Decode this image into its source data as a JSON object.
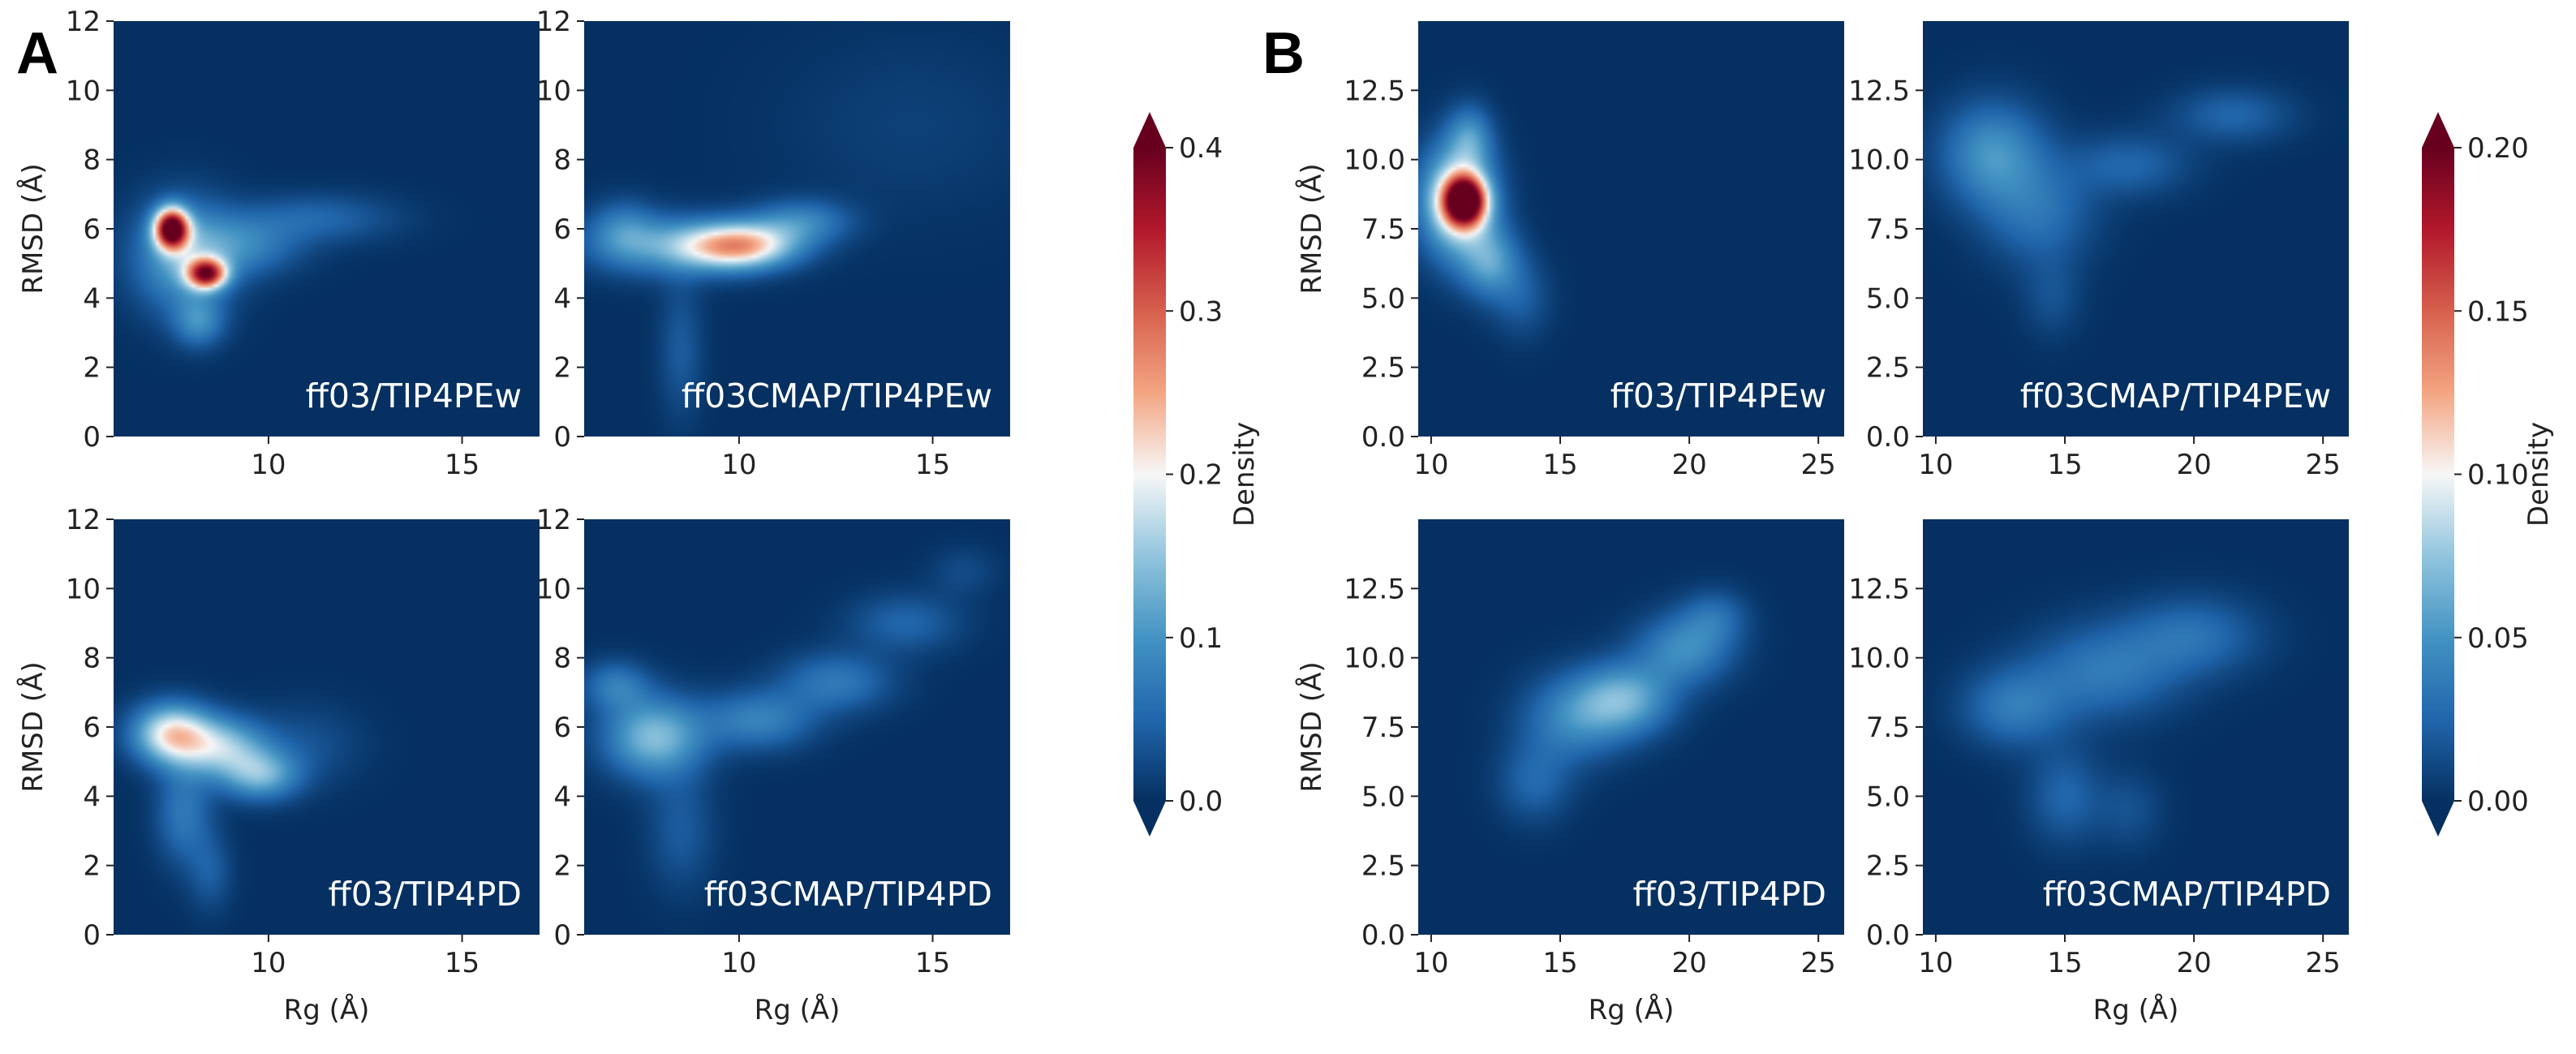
{
  "colors": {
    "background": "#08306b",
    "stops": [
      "#053061",
      "#2166ac",
      "#4393c3",
      "#92c5de",
      "#f7f7f7",
      "#f4a582",
      "#d6604d",
      "#b2182b",
      "#67001f"
    ]
  },
  "chart_data": {
    "groups": [
      {
        "letter": "A",
        "colorbar": {
          "label": "Density",
          "min": 0.0,
          "max": 0.4,
          "ticks": [
            "0.0",
            "0.1",
            "0.2",
            "0.3",
            "0.4"
          ]
        },
        "panels": [
          {
            "label": "ff03/TIP4PEw",
            "type": "heatmap",
            "xlabel": "",
            "ylabel": "RMSD (Å)",
            "xlim": [
              6,
              17
            ],
            "ylim": [
              0,
              12
            ],
            "xticks": [
              "10",
              "15"
            ],
            "yticks": [
              "0",
              "2",
              "4",
              "6",
              "8",
              "10",
              "12"
            ],
            "blobs": [
              {
                "x": 7.5,
                "y": 6.0,
                "sx": 0.3,
                "sy": 0.4,
                "v": 0.4
              },
              {
                "x": 8.4,
                "y": 4.7,
                "sx": 0.35,
                "sy": 0.3,
                "v": 0.32
              },
              {
                "x": 7.8,
                "y": 5.2,
                "sx": 0.9,
                "sy": 1.1,
                "v": 0.12
              },
              {
                "x": 8.2,
                "y": 3.3,
                "sx": 0.45,
                "sy": 0.5,
                "v": 0.08
              },
              {
                "x": 9.4,
                "y": 5.5,
                "sx": 1.0,
                "sy": 0.6,
                "v": 0.07
              },
              {
                "x": 11.3,
                "y": 6.3,
                "sx": 1.4,
                "sy": 0.5,
                "v": 0.05
              }
            ]
          },
          {
            "label": "ff03CMAP/TIP4PEw",
            "type": "heatmap",
            "xlabel": "",
            "ylabel": "",
            "xlim": [
              6,
              17
            ],
            "ylim": [
              0,
              12
            ],
            "xticks": [
              "10",
              "15"
            ],
            "yticks": [
              "0",
              "2",
              "4",
              "6",
              "8",
              "10",
              "12"
            ],
            "blobs": [
              {
                "x": 10.0,
                "y": 5.5,
                "sx": 1.0,
                "sy": 0.45,
                "v": 0.22
              },
              {
                "x": 8.3,
                "y": 5.5,
                "sx": 1.5,
                "sy": 0.6,
                "v": 0.1
              },
              {
                "x": 11.6,
                "y": 6.2,
                "sx": 0.9,
                "sy": 0.45,
                "v": 0.08
              },
              {
                "x": 7.0,
                "y": 6.0,
                "sx": 0.6,
                "sy": 0.6,
                "v": 0.06
              },
              {
                "x": 8.5,
                "y": 2.5,
                "sx": 0.4,
                "sy": 1.4,
                "v": 0.04
              },
              {
                "x": 14.5,
                "y": 9.0,
                "sx": 2.3,
                "sy": 1.8,
                "v": 0.015
              }
            ]
          },
          {
            "label": "ff03/TIP4PD",
            "type": "heatmap",
            "xlabel": "Rg (Å)",
            "ylabel": "RMSD (Å)",
            "xlim": [
              6,
              17
            ],
            "ylim": [
              0,
              12
            ],
            "xticks": [
              "10",
              "15"
            ],
            "yticks": [
              "0",
              "2",
              "4",
              "6",
              "8",
              "10",
              "12"
            ],
            "blobs": [
              {
                "x": 7.5,
                "y": 5.8,
                "sx": 0.7,
                "sy": 0.6,
                "v": 0.2
              },
              {
                "x": 8.8,
                "y": 5.4,
                "sx": 0.8,
                "sy": 0.6,
                "v": 0.14
              },
              {
                "x": 9.8,
                "y": 4.6,
                "sx": 0.7,
                "sy": 0.5,
                "v": 0.12
              },
              {
                "x": 7.8,
                "y": 3.5,
                "sx": 0.5,
                "sy": 1.0,
                "v": 0.07
              },
              {
                "x": 8.5,
                "y": 1.8,
                "sx": 0.4,
                "sy": 0.8,
                "v": 0.04
              },
              {
                "x": 11.0,
                "y": 5.5,
                "sx": 1.0,
                "sy": 0.8,
                "v": 0.03
              }
            ]
          },
          {
            "label": "ff03CMAP/TIP4PD",
            "type": "heatmap",
            "xlabel": "Rg (Å)",
            "ylabel": "",
            "xlim": [
              6,
              17
            ],
            "ylim": [
              0,
              12
            ],
            "xticks": [
              "10",
              "15"
            ],
            "yticks": [
              "0",
              "2",
              "4",
              "6",
              "8",
              "10",
              "12"
            ],
            "blobs": [
              {
                "x": 7.8,
                "y": 5.7,
                "sx": 0.9,
                "sy": 0.8,
                "v": 0.14
              },
              {
                "x": 10.5,
                "y": 6.2,
                "sx": 1.0,
                "sy": 0.6,
                "v": 0.08
              },
              {
                "x": 12.5,
                "y": 7.3,
                "sx": 1.0,
                "sy": 0.6,
                "v": 0.07
              },
              {
                "x": 14.3,
                "y": 9.0,
                "sx": 1.0,
                "sy": 0.6,
                "v": 0.05
              },
              {
                "x": 15.8,
                "y": 10.5,
                "sx": 0.6,
                "sy": 0.5,
                "v": 0.025
              },
              {
                "x": 6.8,
                "y": 7.2,
                "sx": 0.6,
                "sy": 0.5,
                "v": 0.07
              },
              {
                "x": 8.5,
                "y": 3.0,
                "sx": 0.6,
                "sy": 1.2,
                "v": 0.04
              }
            ]
          }
        ]
      },
      {
        "letter": "B",
        "colorbar": {
          "label": "Density",
          "min": 0.0,
          "max": 0.2,
          "ticks": [
            "0.00",
            "0.05",
            "0.10",
            "0.15",
            "0.20"
          ]
        },
        "panels": [
          {
            "label": "ff03/TIP4PEw",
            "type": "heatmap",
            "xlabel": "",
            "ylabel": "RMSD (Å)",
            "xlim": [
              9.5,
              26
            ],
            "ylim": [
              0,
              15
            ],
            "xticks": [
              "10",
              "15",
              "20",
              "25"
            ],
            "yticks": [
              "0.0",
              "2.5",
              "5.0",
              "7.5",
              "10.0",
              "12.5"
            ],
            "blobs": [
              {
                "x": 11.3,
                "y": 8.5,
                "sx": 0.55,
                "sy": 0.6,
                "v": 0.2
              },
              {
                "x": 11.0,
                "y": 8.5,
                "sx": 1.0,
                "sy": 1.4,
                "v": 0.1
              },
              {
                "x": 12.3,
                "y": 6.3,
                "sx": 0.8,
                "sy": 0.9,
                "v": 0.05
              },
              {
                "x": 11.5,
                "y": 10.8,
                "sx": 0.6,
                "sy": 0.8,
                "v": 0.04
              },
              {
                "x": 13.5,
                "y": 5.0,
                "sx": 0.8,
                "sy": 1.0,
                "v": 0.02
              }
            ]
          },
          {
            "label": "ff03CMAP/TIP4PEw",
            "type": "heatmap",
            "xlabel": "",
            "ylabel": "",
            "xlim": [
              9.5,
              26
            ],
            "ylim": [
              0,
              15
            ],
            "xticks": [
              "10",
              "15",
              "20",
              "25"
            ],
            "yticks": [
              "0.0",
              "2.5",
              "5.0",
              "7.5",
              "10.0",
              "12.5"
            ],
            "blobs": [
              {
                "x": 12.2,
                "y": 10.2,
                "sx": 1.4,
                "sy": 1.3,
                "v": 0.05
              },
              {
                "x": 14.0,
                "y": 8.0,
                "sx": 1.5,
                "sy": 1.3,
                "v": 0.03
              },
              {
                "x": 17.5,
                "y": 9.8,
                "sx": 1.6,
                "sy": 0.8,
                "v": 0.025
              },
              {
                "x": 21.5,
                "y": 11.6,
                "sx": 1.6,
                "sy": 0.7,
                "v": 0.025
              },
              {
                "x": 14.5,
                "y": 5.0,
                "sx": 0.8,
                "sy": 1.0,
                "v": 0.015
              }
            ]
          },
          {
            "label": "ff03/TIP4PD",
            "type": "heatmap",
            "xlabel": "Rg (Å)",
            "ylabel": "RMSD (Å)",
            "xlim": [
              9.5,
              26
            ],
            "ylim": [
              0,
              15
            ],
            "xticks": [
              "10",
              "15",
              "20",
              "25"
            ],
            "yticks": [
              "0.0",
              "2.5",
              "5.0",
              "7.5",
              "10.0",
              "12.5"
            ],
            "blobs": [
              {
                "x": 17.5,
                "y": 8.5,
                "sx": 1.3,
                "sy": 0.9,
                "v": 0.06
              },
              {
                "x": 15.5,
                "y": 7.8,
                "sx": 1.4,
                "sy": 1.1,
                "v": 0.04
              },
              {
                "x": 19.8,
                "y": 10.3,
                "sx": 1.3,
                "sy": 0.9,
                "v": 0.045
              },
              {
                "x": 21.0,
                "y": 11.5,
                "sx": 0.9,
                "sy": 0.7,
                "v": 0.025
              },
              {
                "x": 14.0,
                "y": 5.5,
                "sx": 1.0,
                "sy": 1.0,
                "v": 0.025
              }
            ]
          },
          {
            "label": "ff03CMAP/TIP4PD",
            "type": "heatmap",
            "xlabel": "Rg (Å)",
            "ylabel": "",
            "xlim": [
              9.5,
              26
            ],
            "ylim": [
              0,
              15
            ],
            "xticks": [
              "10",
              "15",
              "20",
              "25"
            ],
            "yticks": [
              "0.0",
              "2.5",
              "5.0",
              "7.5",
              "10.0",
              "12.5"
            ],
            "blobs": [
              {
                "x": 13.0,
                "y": 8.2,
                "sx": 1.4,
                "sy": 1.0,
                "v": 0.035
              },
              {
                "x": 16.5,
                "y": 9.5,
                "sx": 2.0,
                "sy": 1.2,
                "v": 0.035
              },
              {
                "x": 20.0,
                "y": 10.8,
                "sx": 1.8,
                "sy": 1.0,
                "v": 0.03
              },
              {
                "x": 15.0,
                "y": 5.0,
                "sx": 1.0,
                "sy": 1.2,
                "v": 0.025
              },
              {
                "x": 17.5,
                "y": 4.5,
                "sx": 0.9,
                "sy": 1.0,
                "v": 0.015
              }
            ]
          }
        ]
      }
    ]
  }
}
